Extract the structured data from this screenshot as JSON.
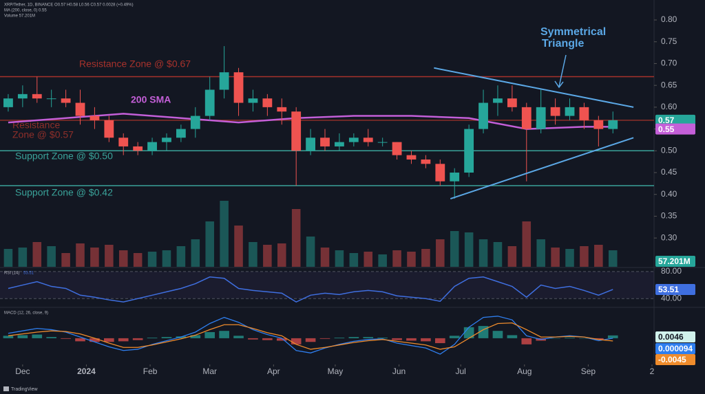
{
  "chart_data": [
    {
      "type": "candlestick",
      "header": [
        "XRP/Tether, 1D, BINANCE  O0.57 H0.58 L0.56 C0.57 0.0028 (+0.49%)",
        "MA (200, close, 0)  0.55",
        "Volume  57.201M"
      ],
      "xlim": [
        -11,
        307
      ],
      "xticks": [
        {
          "value": 0,
          "label": "Dec"
        },
        {
          "value": 31,
          "label": "2024"
        },
        {
          "value": 62,
          "label": "Feb"
        },
        {
          "value": 91,
          "label": "Mar"
        },
        {
          "value": 122,
          "label": "Apr"
        },
        {
          "value": 152,
          "label": "May"
        },
        {
          "value": 183,
          "label": "Jun"
        },
        {
          "value": 213,
          "label": "Jul"
        },
        {
          "value": 244,
          "label": "Aug"
        },
        {
          "value": 275,
          "label": "Sep"
        },
        {
          "value": 306,
          "label": "2"
        }
      ],
      "ylim": [
        0.234,
        0.83
      ],
      "yticks": [
        {
          "value": 0.8,
          "label": "0.80"
        },
        0.75,
        {
          "value": 0.7,
          "label": "0.70"
        },
        0.65,
        {
          "value": 0.6,
          "label": "0.60"
        },
        0.55,
        {
          "value": 0.5,
          "label": "0.50"
        },
        0.45,
        {
          "value": 0.4,
          "label": "0.40"
        },
        0.35,
        {
          "value": 0.3,
          "label": "0.30"
        }
      ],
      "up_color": "#26a69a",
      "down_color": "#ef5350",
      "candles": {
        "x": [
          -7,
          0,
          7,
          14,
          21,
          28,
          35,
          42,
          49,
          56,
          63,
          70,
          77,
          84,
          91,
          98,
          105,
          112,
          119,
          126,
          133,
          140,
          147,
          154,
          161,
          168,
          175,
          182,
          189,
          196,
          203,
          210,
          217,
          224,
          231,
          238,
          245,
          252,
          259,
          266,
          273,
          280,
          287
        ],
        "open": [
          0.6,
          0.62,
          0.63,
          0.62,
          0.62,
          0.61,
          0.58,
          0.57,
          0.53,
          0.51,
          0.5,
          0.52,
          0.53,
          0.55,
          0.58,
          0.64,
          0.68,
          0.61,
          0.62,
          0.6,
          0.59,
          0.5,
          0.53,
          0.51,
          0.52,
          0.53,
          0.52,
          0.52,
          0.49,
          0.48,
          0.47,
          0.43,
          0.45,
          0.55,
          0.61,
          0.62,
          0.6,
          0.55,
          0.6,
          0.58,
          0.6,
          0.57,
          0.55
        ],
        "high": [
          0.63,
          0.65,
          0.67,
          0.64,
          0.64,
          0.64,
          0.6,
          0.58,
          0.54,
          0.52,
          0.53,
          0.54,
          0.56,
          0.6,
          0.67,
          0.74,
          0.69,
          0.64,
          0.63,
          0.62,
          0.6,
          0.55,
          0.55,
          0.54,
          0.54,
          0.55,
          0.53,
          0.52,
          0.5,
          0.49,
          0.48,
          0.46,
          0.56,
          0.64,
          0.65,
          0.65,
          0.61,
          0.64,
          0.62,
          0.62,
          0.61,
          0.58,
          0.59
        ],
        "low": [
          0.59,
          0.6,
          0.61,
          0.6,
          0.6,
          0.56,
          0.55,
          0.52,
          0.49,
          0.49,
          0.49,
          0.5,
          0.52,
          0.53,
          0.57,
          0.62,
          0.58,
          0.59,
          0.58,
          0.56,
          0.42,
          0.49,
          0.5,
          0.5,
          0.51,
          0.51,
          0.51,
          0.48,
          0.47,
          0.46,
          0.42,
          0.39,
          0.44,
          0.54,
          0.58,
          0.59,
          0.43,
          0.54,
          0.56,
          0.57,
          0.55,
          0.51,
          0.54
        ],
        "close": [
          0.62,
          0.63,
          0.62,
          0.62,
          0.61,
          0.58,
          0.57,
          0.53,
          0.51,
          0.5,
          0.52,
          0.53,
          0.55,
          0.58,
          0.64,
          0.68,
          0.61,
          0.62,
          0.6,
          0.59,
          0.5,
          0.53,
          0.51,
          0.52,
          0.53,
          0.52,
          0.52,
          0.49,
          0.48,
          0.47,
          0.43,
          0.45,
          0.55,
          0.61,
          0.62,
          0.6,
          0.55,
          0.6,
          0.58,
          0.6,
          0.57,
          0.55,
          0.57
        ]
      },
      "volume": {
        "values": [
          130,
          140,
          180,
          150,
          100,
          170,
          140,
          160,
          120,
          100,
          110,
          120,
          150,
          200,
          330,
          480,
          300,
          180,
          160,
          170,
          420,
          220,
          140,
          120,
          100,
          110,
          90,
          120,
          110,
          130,
          200,
          260,
          250,
          200,
          180,
          150,
          330,
          200,
          140,
          130,
          150,
          160,
          120
        ],
        "lim": [
          0,
          500
        ],
        "last_label": "57.201M"
      },
      "sma": {
        "name": "200 SMA",
        "color": "#c45fd8",
        "x": [
          -7,
          21,
          49,
          77,
          105,
          133,
          161,
          189,
          217,
          245,
          273,
          287
        ],
        "values": [
          0.565,
          0.575,
          0.585,
          0.575,
          0.565,
          0.575,
          0.58,
          0.58,
          0.575,
          0.55,
          0.555,
          0.555
        ],
        "last": 0.55
      },
      "last_price": 0.57,
      "zones": [
        {
          "value": 0.67,
          "color": "#a8322c",
          "label": [
            "Resistance Zone @ $0.67"
          ]
        },
        {
          "value": 0.57,
          "color": "#8e2f2a",
          "label": [
            "Resistance",
            "Zone @ $0.57"
          ]
        },
        {
          "value": 0.5,
          "color": "#3aa39a",
          "label": [
            "Support Zone @ $0.50"
          ]
        },
        {
          "value": 0.42,
          "color": "#3aa39a",
          "label": [
            "Support Zone @ $0.42"
          ]
        }
      ],
      "triangle": {
        "label": [
          "Symmetrical",
          "Triangle"
        ],
        "color": "#5ba8e6",
        "upper": {
          "x": [
            200,
            297
          ],
          "values": [
            0.69,
            0.6
          ]
        },
        "lower": {
          "x": [
            208,
            297
          ],
          "values": [
            0.39,
            0.53
          ]
        }
      }
    },
    {
      "type": "line",
      "title": "RSI (14)",
      "title_value": 53.51,
      "xlim": [
        -11,
        307
      ],
      "ylim": [
        28,
        85
      ],
      "yticks": [
        {
          "value": 80,
          "label": "80.00"
        },
        {
          "value": 40,
          "label": "40.00"
        }
      ],
      "color": "#3f6fe0",
      "values": [
        55,
        60,
        65,
        58,
        55,
        45,
        42,
        38,
        35,
        40,
        45,
        50,
        55,
        62,
        72,
        70,
        55,
        52,
        50,
        48,
        35,
        45,
        48,
        46,
        50,
        52,
        50,
        44,
        42,
        40,
        36,
        58,
        70,
        72,
        65,
        58,
        42,
        60,
        55,
        58,
        52,
        45,
        53.51
      ],
      "last": 53.51
    },
    {
      "type": "macd",
      "title": "MACD (12, 26, close, 9)",
      "xlim": [
        -11,
        307
      ],
      "ylim": [
        -0.0405,
        0.047
      ],
      "histogram": {
        "color": "#26a69a",
        "down_color": "#ef5350",
        "values": [
          0.004,
          0.005,
          0.006,
          0.002,
          -0.001,
          -0.005,
          -0.006,
          -0.006,
          -0.005,
          -0.003,
          0.001,
          0.002,
          0.003,
          0.005,
          0.01,
          0.012,
          0.004,
          -0.002,
          -0.003,
          -0.004,
          -0.01,
          -0.006,
          -0.001,
          0.001,
          0.002,
          0.002,
          0.001,
          -0.003,
          -0.004,
          -0.005,
          -0.008,
          0.004,
          0.018,
          0.02,
          0.012,
          0.005,
          -0.01,
          -0.004,
          0.0,
          0.001,
          0.0,
          -0.002,
          0.0046
        ],
        "last": 0.0046
      },
      "macd": {
        "color": "#2f7ff0",
        "values": [
          0.008,
          0.012,
          0.016,
          0.014,
          0.01,
          0.002,
          -0.006,
          -0.014,
          -0.02,
          -0.018,
          -0.01,
          -0.004,
          0.002,
          0.01,
          0.024,
          0.034,
          0.026,
          0.014,
          0.006,
          0.0,
          -0.02,
          -0.024,
          -0.016,
          -0.01,
          -0.005,
          -0.002,
          -0.001,
          -0.008,
          -0.012,
          -0.016,
          -0.026,
          -0.01,
          0.018,
          0.034,
          0.036,
          0.03,
          0.004,
          -0.002,
          0.002,
          0.004,
          0.002,
          -0.004,
          9.4e-05
        ],
        "last": 9.4e-05
      },
      "signal": {
        "color": "#f08c2c",
        "values": [
          0.004,
          0.007,
          0.01,
          0.012,
          0.011,
          0.007,
          0.0,
          -0.008,
          -0.015,
          -0.015,
          -0.011,
          -0.006,
          -0.001,
          0.005,
          0.014,
          0.022,
          0.022,
          0.016,
          0.009,
          0.004,
          -0.01,
          -0.018,
          -0.015,
          -0.011,
          -0.007,
          -0.004,
          -0.002,
          -0.005,
          -0.008,
          -0.011,
          -0.018,
          -0.014,
          0.0,
          0.014,
          0.024,
          0.025,
          0.014,
          0.002,
          0.002,
          0.003,
          0.002,
          -0.002,
          -0.0045
        ],
        "last": -0.0045
      }
    },
    {
      "type": "footer",
      "brand": "TradingView"
    }
  ]
}
